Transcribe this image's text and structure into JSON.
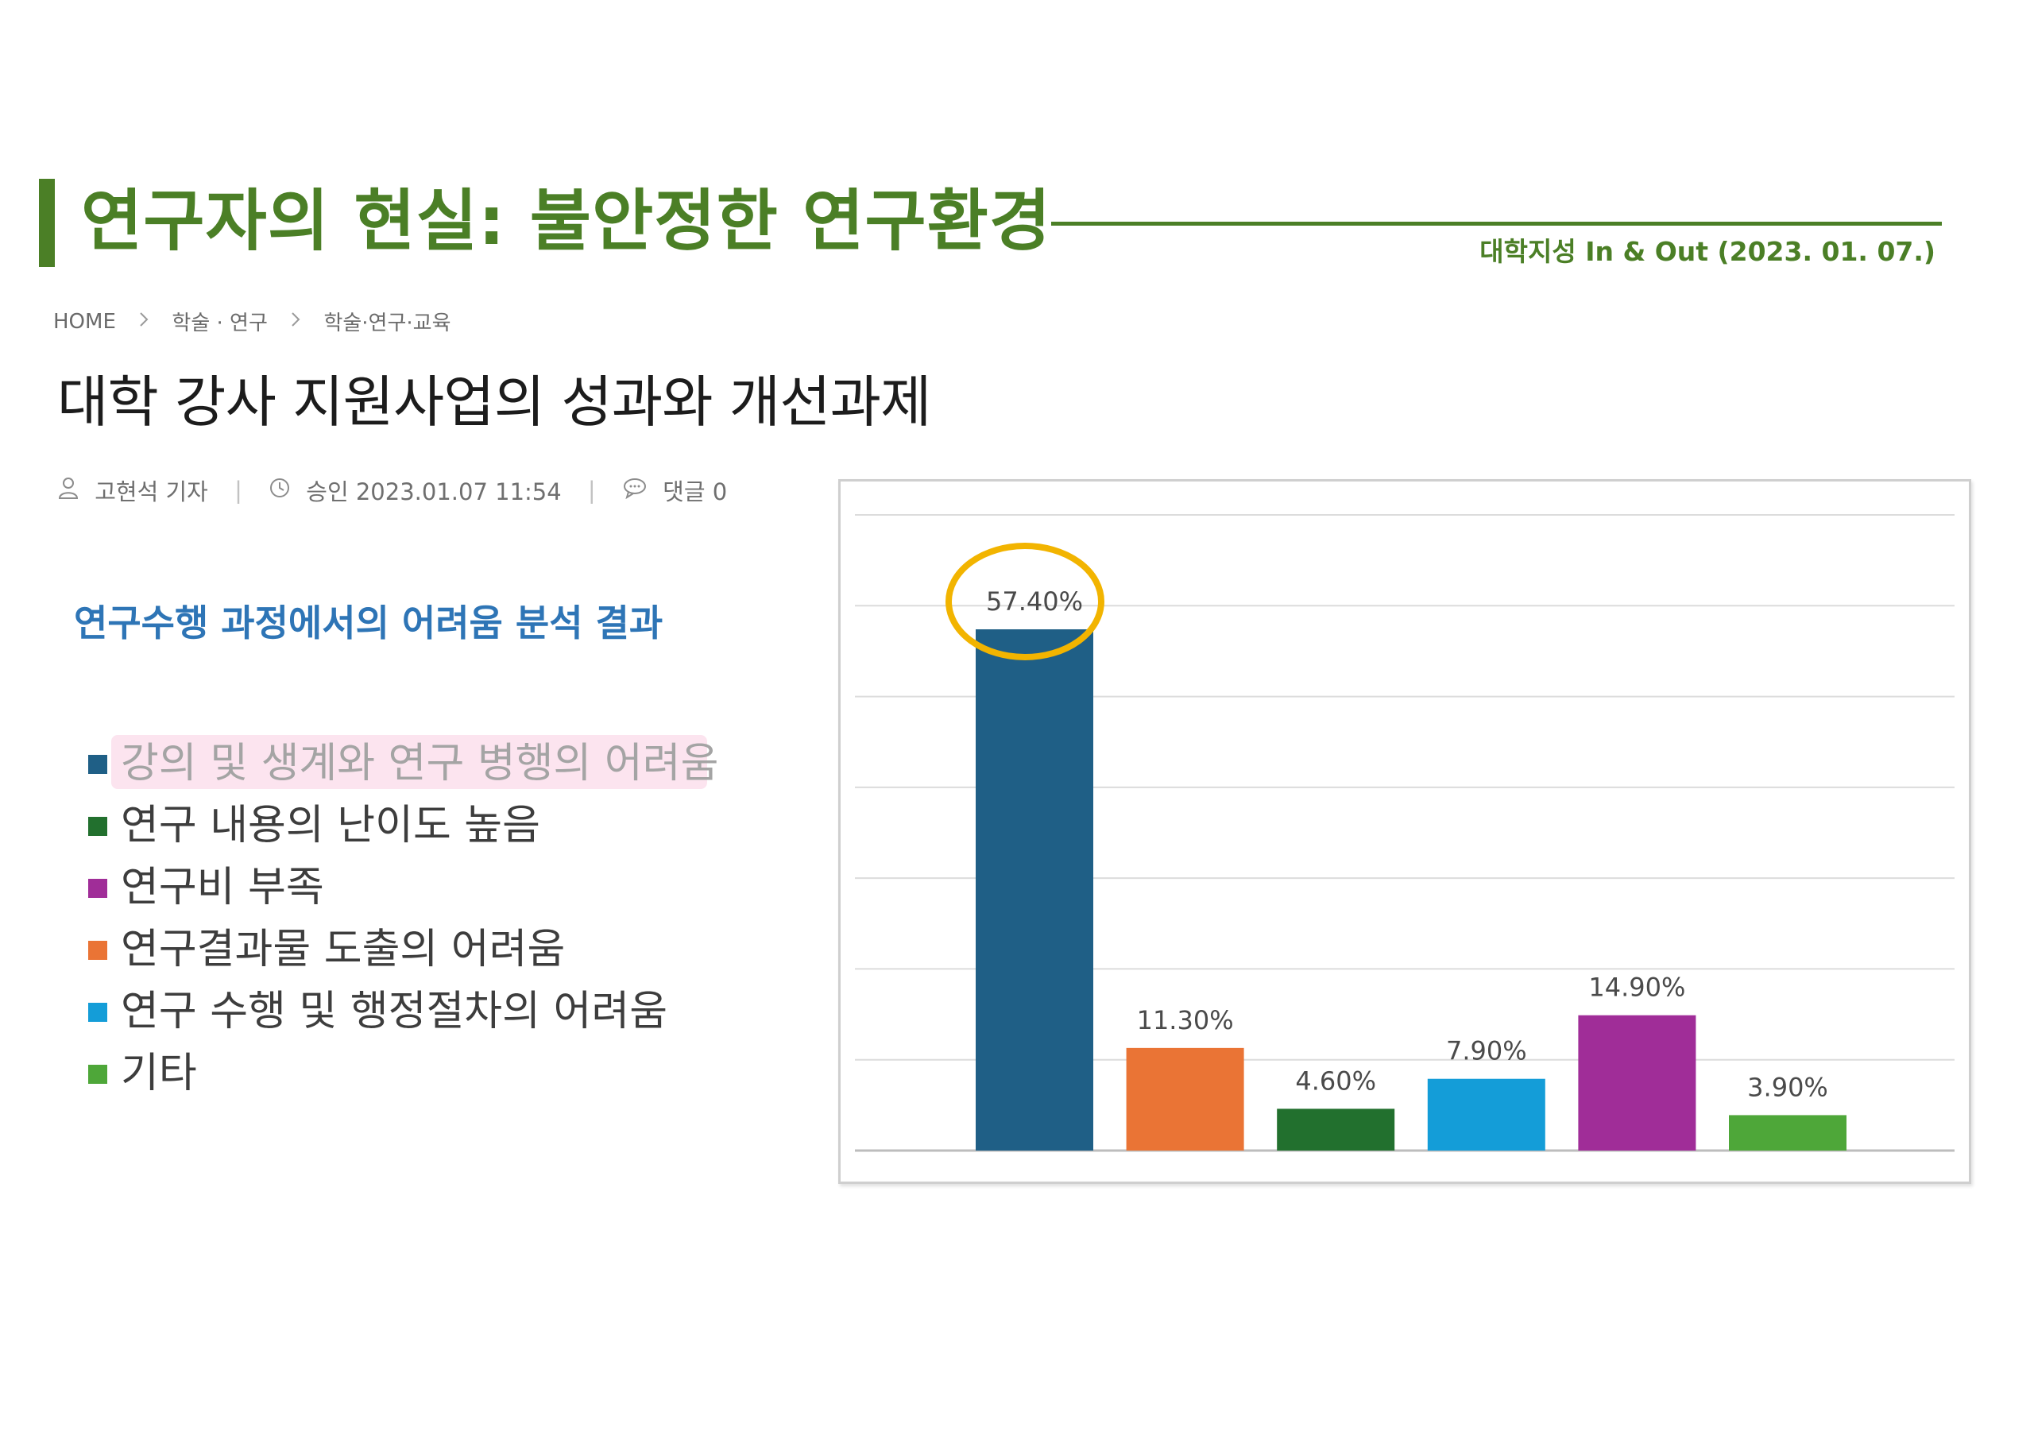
{
  "slide": {
    "title": "연구자의 현실: 불안정한 연구환경",
    "source": "대학지성 In & Out (2023. 01. 07.)",
    "accent_color": "#4b7f26"
  },
  "article": {
    "breadcrumb": [
      "HOME",
      "학술 · 연구",
      "학술·연구·교육"
    ],
    "title": "대학 강사 지원사업의 성과와 개선과제",
    "author": "고현석 기자",
    "approved": "승인 2023.01.07 11:54",
    "comments": "댓글 0",
    "icons": {
      "author": "user-icon",
      "approved": "clock-icon",
      "comments": "comment-icon",
      "breadcrumb_separator": "chevron-right-icon"
    }
  },
  "chart_caption": "연구수행 과정에서의 어려움 분석 결과",
  "chart_data": {
    "type": "bar",
    "legend": [
      {
        "label": "강의 및 생계와 연구 병행의 어려움",
        "color": "#1f5f86",
        "highlighted": true
      },
      {
        "label": "연구 내용의 난이도 높음",
        "color": "#22702e",
        "highlighted": false
      },
      {
        "label": "연구비 부족",
        "color": "#a02d98",
        "highlighted": false
      },
      {
        "label": "연구결과물 도출의 어려움",
        "color": "#ea7435",
        "highlighted": false
      },
      {
        "label": "연구 수행 및 행정절차의 어려움",
        "color": "#149dd8",
        "highlighted": false
      },
      {
        "label": "기타",
        "color": "#4ea739",
        "highlighted": false
      }
    ],
    "bars": [
      {
        "category": "강의 및 생계와 연구 병행의 어려움",
        "value": 57.4,
        "label": "57.40%",
        "color": "#1f5f86",
        "circled": true
      },
      {
        "category": "연구결과물 도출의 어려움",
        "value": 11.3,
        "label": "11.30%",
        "color": "#ea7435",
        "circled": false
      },
      {
        "category": "연구 내용의 난이도 높음",
        "value": 4.6,
        "label": "4.60%",
        "color": "#22702e",
        "circled": false
      },
      {
        "category": "연구 수행 및 행정절차의 어려움",
        "value": 7.9,
        "label": "7.90%",
        "color": "#149dd8",
        "circled": false
      },
      {
        "category": "연구비 부족",
        "value": 14.9,
        "label": "14.90%",
        "color": "#a02d98",
        "circled": false
      },
      {
        "category": "기타",
        "value": 3.9,
        "label": "3.90%",
        "color": "#4ea739",
        "circled": false
      }
    ],
    "ylim": [
      0,
      70
    ],
    "grid": true,
    "legend_position": "left",
    "highlight_circle_color": "#f2b400"
  }
}
